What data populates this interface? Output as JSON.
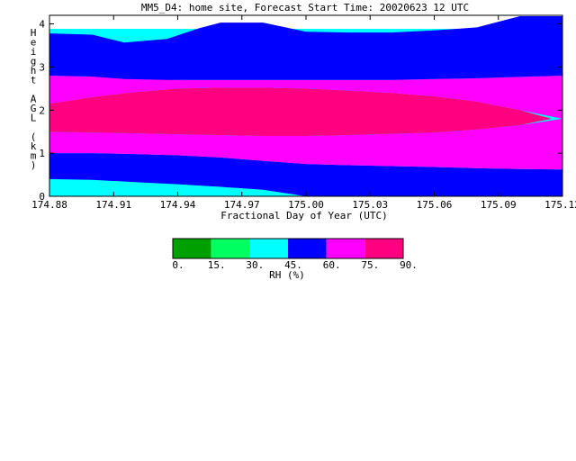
{
  "chart_data": {
    "type": "heatmap",
    "title": "MM5_D4: home site,  Forecast Start Time: 20020623 12 UTC",
    "xlabel": "Fractional Day of Year (UTC)",
    "ylabel": "Height AGL (km)",
    "xlim": [
      174.88,
      175.12
    ],
    "ylim": [
      0,
      4.2
    ],
    "x_ticks": [
      "174.88",
      "174.91",
      "174.94",
      "174.97",
      "175.00",
      "175.03",
      "175.06",
      "175.09",
      "175.12"
    ],
    "y_ticks": [
      "0",
      "1",
      "2",
      "3",
      "4"
    ],
    "x_tick_values": [
      174.88,
      174.91,
      174.94,
      174.97,
      175.0,
      175.03,
      175.06,
      175.09,
      175.12
    ],
    "y_tick_values": [
      0,
      1,
      2,
      3,
      4
    ],
    "colorbar": {
      "label": "RH (%)",
      "tick_labels": [
        "0.",
        "15.",
        "30.",
        "45.",
        "60.",
        "75.",
        "90."
      ],
      "colors": [
        "#00a000",
        "#00ff60",
        "#00ffff",
        "#0000ff",
        "#ff00ff",
        "#ff0080"
      ]
    },
    "regions": [
      {
        "name": "rh-30-45-bottom",
        "color": "#00ffff",
        "x": [
          174.88,
          174.9,
          174.92,
          174.94,
          174.96,
          174.98,
          175.0
        ],
        "y_bottom": [
          0,
          0,
          0,
          0,
          0,
          0,
          0
        ],
        "y_top": [
          0.4,
          0.38,
          0.33,
          0.28,
          0.22,
          0.15,
          0.0
        ]
      },
      {
        "name": "rh-45-60-lower",
        "color": "#0000ff",
        "x": [
          174.88,
          174.9,
          174.92,
          174.94,
          174.96,
          174.98,
          175.0,
          175.02,
          175.04,
          175.06,
          175.08,
          175.1,
          175.12
        ],
        "y_bottom": [
          0.4,
          0.38,
          0.33,
          0.28,
          0.22,
          0.15,
          0.0,
          0.0,
          0.0,
          0.0,
          0.0,
          0.0,
          0.0
        ],
        "y_top": [
          1.0,
          1.0,
          0.98,
          0.95,
          0.9,
          0.82,
          0.75,
          0.72,
          0.7,
          0.68,
          0.65,
          0.63,
          0.62
        ]
      },
      {
        "name": "rh-60-75-lower",
        "color": "#ff00ff",
        "x": [
          174.88,
          174.9,
          174.92,
          174.94,
          174.96,
          174.98,
          175.0,
          175.02,
          175.04,
          175.06,
          175.08,
          175.1,
          175.12
        ],
        "y_bottom": [
          1.0,
          1.0,
          0.98,
          0.95,
          0.9,
          0.82,
          0.75,
          0.72,
          0.7,
          0.68,
          0.65,
          0.63,
          0.62
        ],
        "y_top": [
          1.5,
          1.48,
          1.46,
          1.44,
          1.42,
          1.4,
          1.4,
          1.42,
          1.45,
          1.48,
          1.55,
          1.65,
          1.8
        ]
      },
      {
        "name": "rh-75-90-core",
        "color": "#ff0080",
        "x": [
          174.88,
          174.9,
          174.92,
          174.94,
          174.96,
          174.98,
          175.0,
          175.02,
          175.04,
          175.06,
          175.08,
          175.1,
          175.115
        ],
        "y_bottom": [
          1.5,
          1.48,
          1.46,
          1.44,
          1.42,
          1.4,
          1.4,
          1.42,
          1.45,
          1.48,
          1.55,
          1.65,
          1.8
        ],
        "y_top": [
          2.15,
          2.3,
          2.42,
          2.5,
          2.52,
          2.52,
          2.5,
          2.45,
          2.4,
          2.32,
          2.2,
          2.0,
          1.8
        ]
      },
      {
        "name": "rh-60-75-upper",
        "color": "#ff00ff",
        "x": [
          174.88,
          174.9,
          174.92,
          174.94,
          174.96,
          174.98,
          175.0,
          175.02,
          175.04,
          175.06,
          175.08,
          175.1,
          175.12
        ],
        "y_bottom": [
          2.15,
          2.3,
          2.42,
          2.5,
          2.52,
          2.52,
          2.5,
          2.45,
          2.4,
          2.32,
          2.2,
          2.0,
          1.8
        ],
        "y_top": [
          2.8,
          2.78,
          2.72,
          2.7,
          2.7,
          2.7,
          2.7,
          2.7,
          2.7,
          2.72,
          2.74,
          2.77,
          2.8
        ]
      },
      {
        "name": "rh-45-60-upper",
        "color": "#0000ff",
        "x": [
          174.88,
          174.9,
          174.915,
          174.935,
          174.95,
          174.96,
          174.98,
          175.0,
          175.02,
          175.04,
          175.06,
          175.08,
          175.1,
          175.12
        ],
        "y_bottom": [
          2.8,
          2.78,
          2.72,
          2.7,
          2.7,
          2.7,
          2.7,
          2.7,
          2.7,
          2.7,
          2.72,
          2.74,
          2.77,
          2.8
        ],
        "y_top": [
          3.78,
          3.75,
          3.57,
          3.65,
          3.9,
          4.03,
          4.03,
          3.82,
          3.8,
          3.8,
          3.85,
          3.92,
          4.18,
          4.18
        ]
      }
    ]
  }
}
